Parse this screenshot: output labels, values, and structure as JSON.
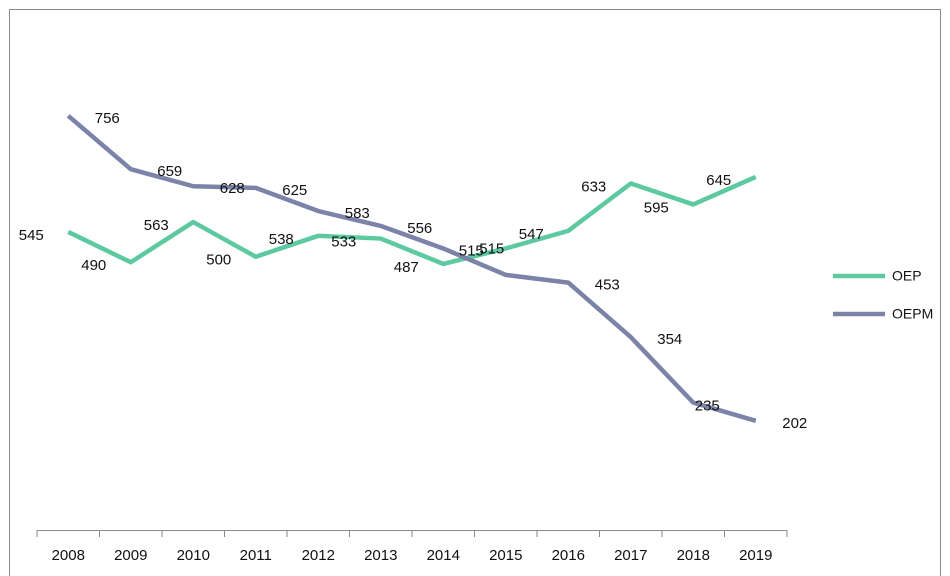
{
  "chart_data": {
    "type": "line",
    "categories": [
      "2008",
      "2009",
      "2010",
      "2011",
      "2012",
      "2013",
      "2014",
      "2015",
      "2016",
      "2017",
      "2018",
      "2019"
    ],
    "series": [
      {
        "name": "OEP",
        "color": "#5dc9a0",
        "values": [
          545,
          490,
          563,
          500,
          538,
          533,
          487,
          515,
          547,
          633,
          595,
          645
        ]
      },
      {
        "name": "OEPM",
        "color": "#7b84a8",
        "values": [
          756,
          659,
          628,
          625,
          583,
          556,
          515,
          467,
          453,
          354,
          235,
          202
        ],
        "value_labels": [
          "756",
          "659",
          "628",
          "625",
          "583",
          "556",
          "515",
          null,
          "453",
          "354",
          "235",
          "202"
        ]
      }
    ],
    "ylim": [
      0,
      930
    ],
    "legend": "right"
  }
}
